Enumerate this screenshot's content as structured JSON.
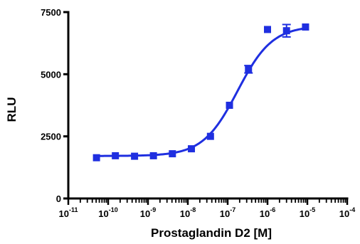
{
  "chart_data": {
    "type": "scatter",
    "title": "",
    "xlabel": "Prostaglandin D2 [M]",
    "ylabel": "RLU",
    "x_scale": "log10",
    "xlim": [
      1e-11,
      0.0001
    ],
    "ylim": [
      0,
      7500
    ],
    "x_tick_labels": [
      {
        "base": "10",
        "exp": "-11"
      },
      {
        "base": "10",
        "exp": "-10"
      },
      {
        "base": "10",
        "exp": "-9"
      },
      {
        "base": "10",
        "exp": "-8"
      },
      {
        "base": "10",
        "exp": "-7"
      },
      {
        "base": "10",
        "exp": "-6"
      },
      {
        "base": "10",
        "exp": "-5"
      },
      {
        "base": "10",
        "exp": "-4"
      }
    ],
    "y_ticks": [
      0,
      2500,
      5000,
      7500
    ],
    "y_tick_labels": [
      "0",
      "2500",
      "5000",
      "7500"
    ],
    "series_color": "#1f2fe0",
    "points": [
      {
        "x": 5.1e-11,
        "y": 1640,
        "err": 0
      },
      {
        "x": 1.52e-10,
        "y": 1720,
        "err": 0
      },
      {
        "x": 4.6e-10,
        "y": 1700,
        "err": 0
      },
      {
        "x": 1.37e-09,
        "y": 1720,
        "err": 0
      },
      {
        "x": 4.1e-09,
        "y": 1800,
        "err": 0
      },
      {
        "x": 1.23e-08,
        "y": 2000,
        "err": 0
      },
      {
        "x": 3.7e-08,
        "y": 2500,
        "err": 0
      },
      {
        "x": 1.11e-07,
        "y": 3750,
        "err": 0
      },
      {
        "x": 3.33e-07,
        "y": 5200,
        "err": 150
      },
      {
        "x": 1e-06,
        "y": 6800,
        "err": 0
      },
      {
        "x": 3e-06,
        "y": 6750,
        "err": 250
      },
      {
        "x": 9e-06,
        "y": 6900,
        "err": 0
      }
    ],
    "fit": {
      "model": "sigmoidal dose-response",
      "bottom": 1710,
      "top": 6950,
      "log_ec50": -6.75,
      "hill_slope": 1.0
    },
    "grid": false,
    "legend": "none"
  }
}
